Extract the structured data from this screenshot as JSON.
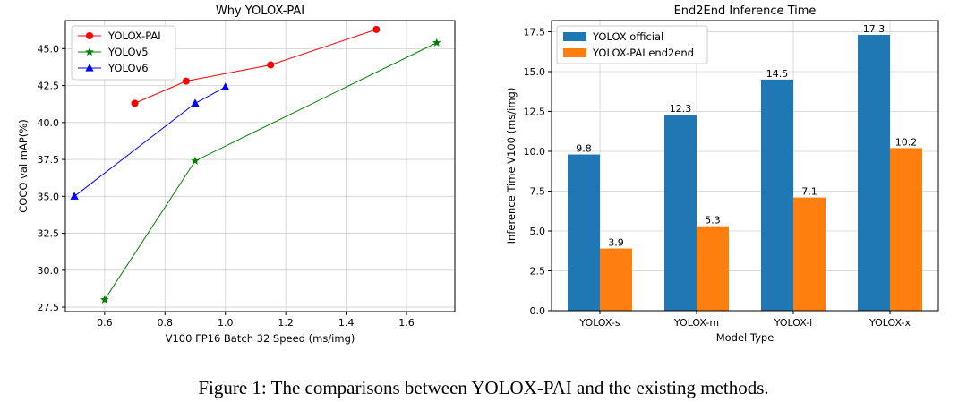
{
  "caption": "Figure 1: The comparisons between YOLOX-PAI and the existing methods.",
  "chart_data": [
    {
      "type": "line",
      "title": "Why YOLOX-PAI",
      "xlabel": "V100 FP16 Batch 32 Speed (ms/img)",
      "ylabel": "COCO val mAP(%)",
      "xlim": [
        0.47,
        1.76
      ],
      "ylim": [
        27.2,
        46.9
      ],
      "xticks": [
        0.6,
        0.8,
        1.0,
        1.2,
        1.4,
        1.6
      ],
      "xtick_labels": [
        "0.6",
        "0.8",
        "1.0",
        "1.2",
        "1.4",
        "1.6"
      ],
      "yticks": [
        27.5,
        30.0,
        32.5,
        35.0,
        37.5,
        40.0,
        42.5,
        45.0
      ],
      "ytick_labels": [
        "27.5",
        "30.0",
        "32.5",
        "35.0",
        "37.5",
        "40.0",
        "42.5",
        "45.0"
      ],
      "grid": true,
      "legend_position": "top-left",
      "series": [
        {
          "name": "YOLOX-PAI",
          "color": "#ff0000",
          "marker": "circle",
          "x": [
            0.7,
            0.87,
            1.15,
            1.5
          ],
          "y": [
            41.3,
            42.8,
            43.9,
            46.3
          ]
        },
        {
          "name": "YOLOv5",
          "color": "#008000",
          "marker": "star",
          "x": [
            0.6,
            0.9,
            1.7
          ],
          "y": [
            28.0,
            37.4,
            45.4
          ]
        },
        {
          "name": "YOLOv6",
          "color": "#0000ff",
          "marker": "triangle",
          "x": [
            0.5,
            0.9,
            1.0
          ],
          "y": [
            35.0,
            41.3,
            42.4
          ]
        }
      ]
    },
    {
      "type": "bar",
      "title": "End2End Inference Time",
      "xlabel": "Model Type",
      "ylabel": "Inference Time V100 (ms/img)",
      "categories": [
        "YOLOX-s",
        "YOLOX-m",
        "YOLOX-l",
        "YOLOX-x"
      ],
      "ylim": [
        0,
        18.2
      ],
      "yticks": [
        0,
        2.5,
        5.0,
        7.5,
        10.0,
        12.5,
        15.0,
        17.5
      ],
      "ytick_labels": [
        "0.0",
        "2.5",
        "5.0",
        "7.5",
        "10.0",
        "12.5",
        "15.0",
        "17.5"
      ],
      "grid": true,
      "legend_position": "top-left",
      "series": [
        {
          "name": "YOLOX official",
          "color": "#1f77b4",
          "values": [
            9.8,
            12.3,
            14.5,
            17.3
          ],
          "labels": [
            "9.8",
            "12.3",
            "14.5",
            "17.3"
          ]
        },
        {
          "name": "YOLOX-PAI end2end",
          "color": "#ff7f0e",
          "values": [
            3.9,
            5.3,
            7.1,
            10.2
          ],
          "labels": [
            "3.9",
            "5.3",
            "7.1",
            "10.2"
          ]
        }
      ]
    }
  ]
}
